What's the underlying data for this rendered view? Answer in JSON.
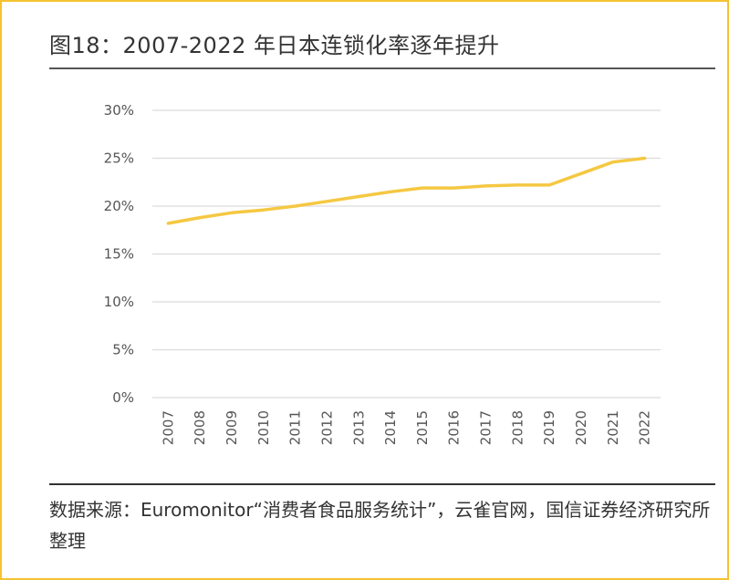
{
  "title": "图18：2007-2022 年日本连锁化率逐年提升",
  "source": "数据来源：Euromonitor“消费者食品服务统计”，云雀官网，国信证券经济研究所整理",
  "chart_data": {
    "type": "line",
    "x": [
      "2007",
      "2008",
      "2009",
      "2010",
      "2011",
      "2012",
      "2013",
      "2014",
      "2015",
      "2016",
      "2017",
      "2018",
      "2019",
      "2020",
      "2021",
      "2022"
    ],
    "series": [
      {
        "values": [
          18.2,
          18.8,
          19.3,
          19.6,
          20.0,
          20.5,
          21.0,
          21.5,
          21.9,
          21.9,
          22.1,
          22.2,
          22.2,
          23.4,
          24.6,
          25.0
        ]
      }
    ],
    "ylim": [
      0,
      30
    ],
    "yticks": [
      0,
      5,
      10,
      15,
      20,
      25,
      30
    ],
    "ytick_labels": [
      "0%",
      "5%",
      "10%",
      "15%",
      "20%",
      "25%",
      "30%"
    ],
    "grid": true,
    "line_color": "#f5c842"
  }
}
